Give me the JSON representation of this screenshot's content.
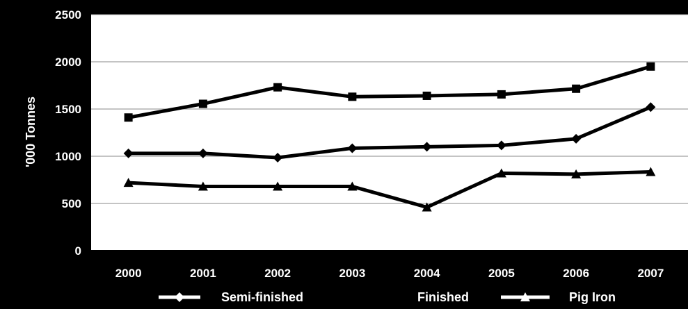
{
  "chart_data": {
    "type": "line",
    "title": "",
    "xlabel": "",
    "ylabel": "'000 Tonnes",
    "categories": [
      "2000",
      "2001",
      "2002",
      "2003",
      "2004",
      "2005",
      "2006",
      "2007"
    ],
    "yticks": [
      "0",
      "500",
      "1000",
      "1500",
      "2000",
      "2500"
    ],
    "ylim": [
      0,
      2500
    ],
    "grid": true,
    "legend": "bottom",
    "series": [
      {
        "name": "Semi-finished",
        "marker": "diamond",
        "values": [
          1030,
          1030,
          985,
          1085,
          1100,
          1115,
          1185,
          1520
        ]
      },
      {
        "name": "Finished",
        "marker": "square",
        "values": [
          1410,
          1555,
          1730,
          1630,
          1640,
          1655,
          1715,
          1950
        ]
      },
      {
        "name": "Pig Iron",
        "marker": "triangle",
        "values": [
          720,
          680,
          680,
          680,
          460,
          820,
          810,
          835
        ]
      }
    ]
  }
}
